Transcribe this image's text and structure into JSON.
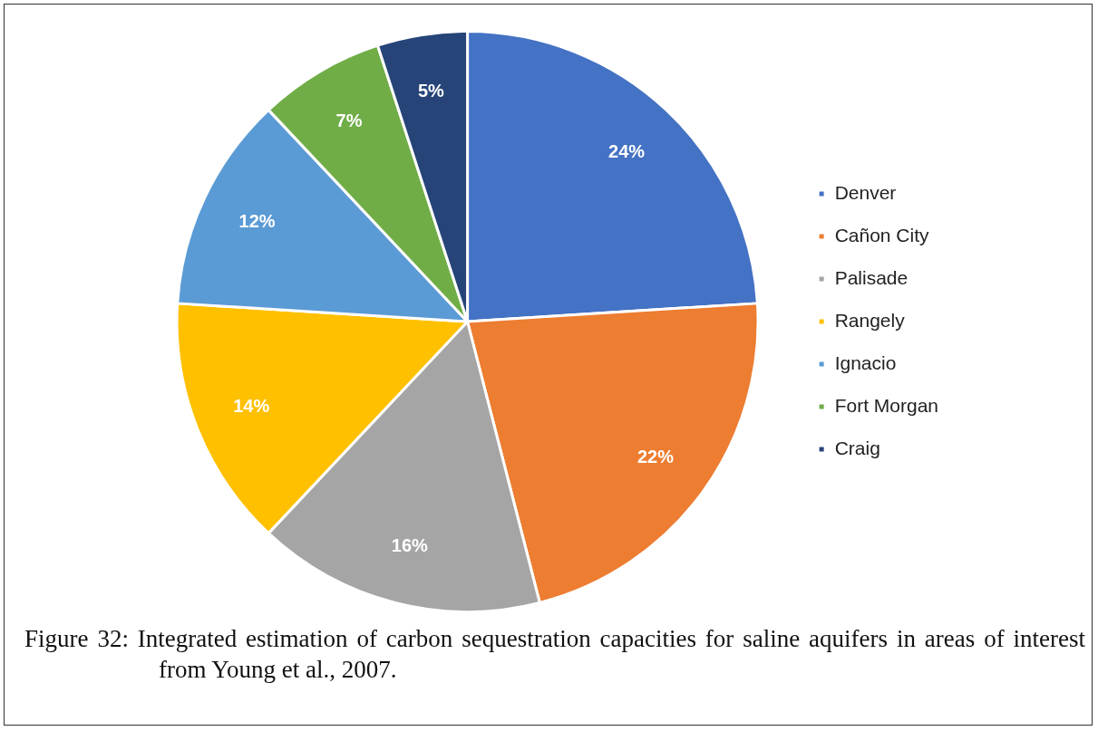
{
  "chart_data": {
    "type": "pie",
    "categories": [
      "Denver",
      "Cañon City",
      "Palisade",
      "Rangely",
      "Ignacio",
      "Fort Morgan",
      "Craig"
    ],
    "values": [
      24,
      22,
      16,
      14,
      12,
      7,
      5
    ],
    "colors": [
      "#4472c4",
      "#ed7d31",
      "#a5a5a5",
      "#ffc000",
      "#5b9bd5",
      "#70ad47",
      "#264478"
    ],
    "value_labels": [
      "24%",
      "22%",
      "16%",
      "14%",
      "12%",
      "7%",
      "5%"
    ],
    "legend": "right",
    "annotations": [
      "Figure 32: Integrated estimation of carbon sequestration capacities for saline aquifers in areas of interest from Young et al., 2007."
    ]
  }
}
